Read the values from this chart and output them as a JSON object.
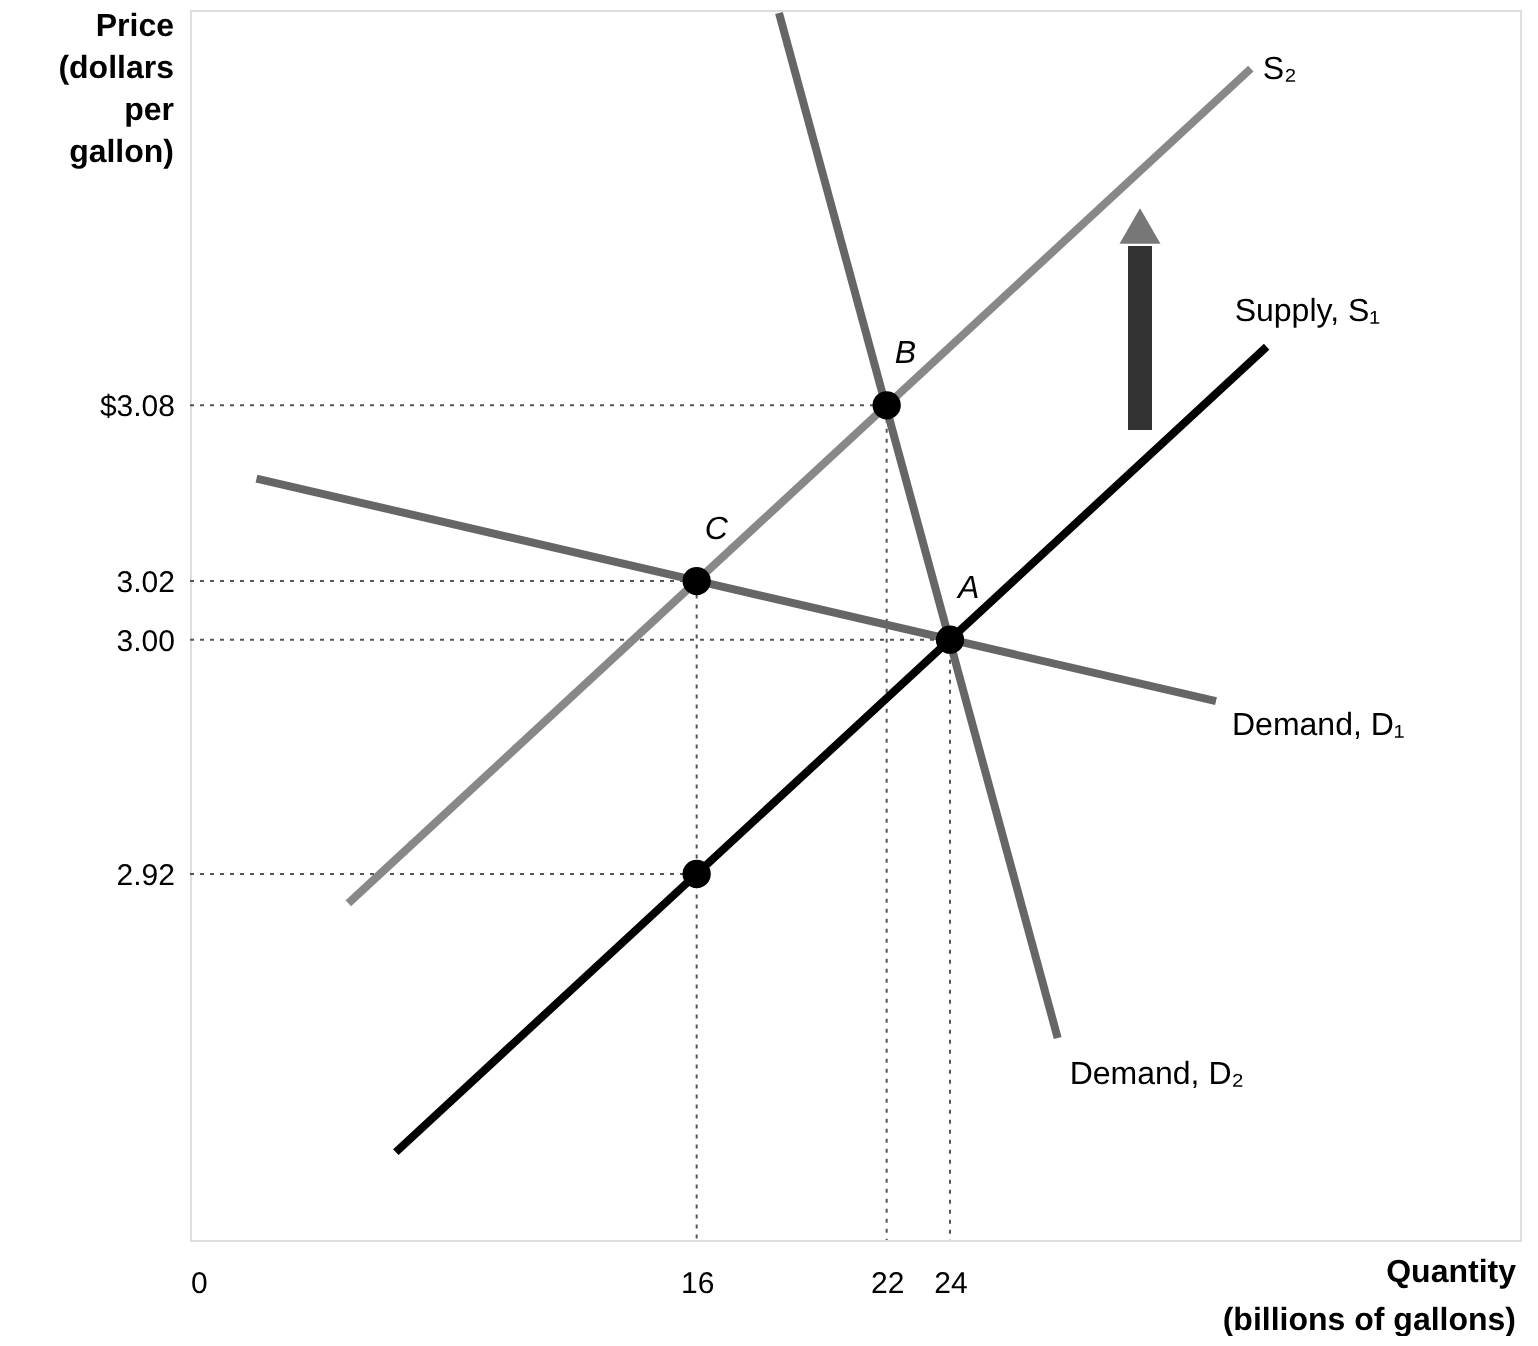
{
  "chart_data": {
    "type": "line",
    "xlabel": "Quantity\n(billions of gallons)",
    "ylabel": "Price\n(dollars\nper\ngallon)",
    "xlim": [
      0,
      42
    ],
    "ylim": [
      2.795,
      3.215
    ],
    "xticks": [
      0,
      16,
      22,
      24
    ],
    "yticks": [
      {
        "value": 2.92,
        "label": "2.92"
      },
      {
        "value": 3.0,
        "label": "3.00"
      },
      {
        "value": 3.02,
        "label": "3.02"
      },
      {
        "value": 3.08,
        "label": "$3.08"
      }
    ],
    "grid": false,
    "line_style": "solid",
    "series": [
      {
        "line_style": "dotted",
        "color": "#555555",
        "x": [
          0,
          24,
          24
        ],
        "values": [
          3.0,
          3.0,
          2.795
        ]
      },
      {
        "line_style": "dotted",
        "color": "#555555",
        "x": [
          0,
          22,
          22
        ],
        "values": [
          3.08,
          3.08,
          2.795
        ]
      },
      {
        "line_style": "dotted",
        "color": "#555555",
        "x": [
          0,
          16,
          16
        ],
        "values": [
          3.02,
          3.02,
          2.795
        ]
      },
      {
        "line_style": "dotted",
        "color": "#555555",
        "x": [
          0,
          16
        ],
        "values": [
          2.92,
          2.92
        ]
      },
      {
        "name": "Demand, D₁",
        "color": "#666666",
        "x": [
          2.1,
          32.4
        ],
        "values": [
          3.055,
          2.979
        ]
      },
      {
        "name": "Demand, D₂",
        "color": "#666666",
        "x": [
          18.6,
          27.4
        ],
        "values": [
          3.214,
          2.864
        ]
      },
      {
        "name": "Supply, S₁",
        "color": "#000000",
        "x": [
          6.5,
          34
        ],
        "values": [
          2.825,
          3.1
        ]
      },
      {
        "name": "S₂",
        "color": "#888888",
        "x": [
          5,
          33.5
        ],
        "values": [
          2.91,
          3.195
        ]
      },
      {
        "type": "scatter",
        "marker": "circle",
        "color": "#000000",
        "x": [
          24,
          22,
          16,
          16
        ],
        "values": [
          3.0,
          3.08,
          3.02,
          2.92
        ]
      }
    ],
    "annotations": [
      {
        "text": "A",
        "x": 24,
        "y": 3.0
      },
      {
        "text": "B",
        "x": 22,
        "y": 3.08
      },
      {
        "text": "C",
        "x": 16,
        "y": 3.02
      }
    ]
  }
}
